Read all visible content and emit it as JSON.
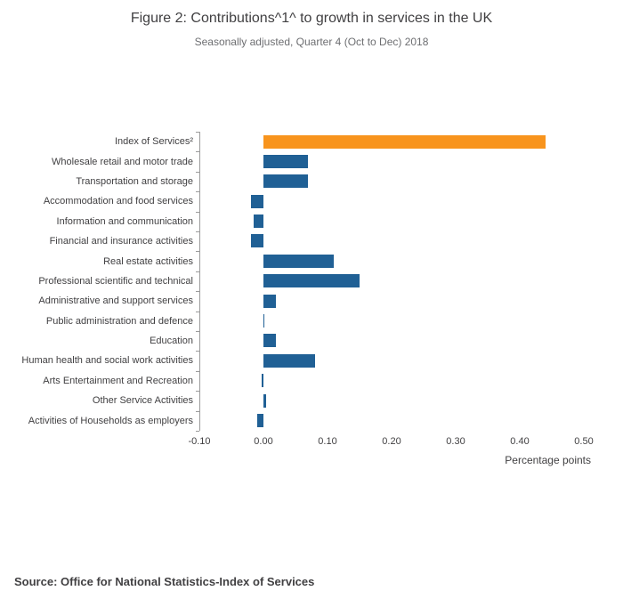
{
  "header": {
    "title": "Figure 2: Contributions^1^ to growth in services in the UK",
    "subtitle": "Seasonally adjusted, Quarter 4 (Oct to Dec) 2018"
  },
  "chart_data": {
    "type": "bar",
    "orientation": "horizontal",
    "title": "Figure 2: Contributions^1^ to growth in services in the UK",
    "subtitle": "Seasonally adjusted, Quarter 4 (Oct to Dec) 2018",
    "categories": [
      "Index of Services²",
      "Wholesale retail and motor trade",
      "Transportation and storage",
      "Accommodation and food services",
      "Information and communication",
      "Financial and insurance activities",
      "Real estate activities",
      "Professional scientific and technical",
      "Administrative and support services",
      "Public administration and defence",
      "Education",
      "Human health and social work activities",
      "Arts Entertainment and Recreation",
      "Other Service Activities",
      "Activities of Households as employers"
    ],
    "values": [
      0.44,
      0.07,
      0.07,
      -0.02,
      -0.015,
      -0.02,
      0.11,
      0.15,
      0.02,
      0.002,
      0.02,
      0.08,
      -0.003,
      0.004,
      -0.01
    ],
    "highlight_index": 0,
    "highlight_color": "#f8941d",
    "bar_color": "#206095",
    "xlim": [
      -0.1,
      0.5
    ],
    "x_ticks": [
      "-0.10",
      "0.00",
      "0.10",
      "0.20",
      "0.30",
      "0.40",
      "0.50"
    ],
    "xlabel": "Percentage points",
    "grid": "none",
    "legend": "none"
  },
  "footer": {
    "source": "Source: Office for National Statistics-Index of Services"
  }
}
